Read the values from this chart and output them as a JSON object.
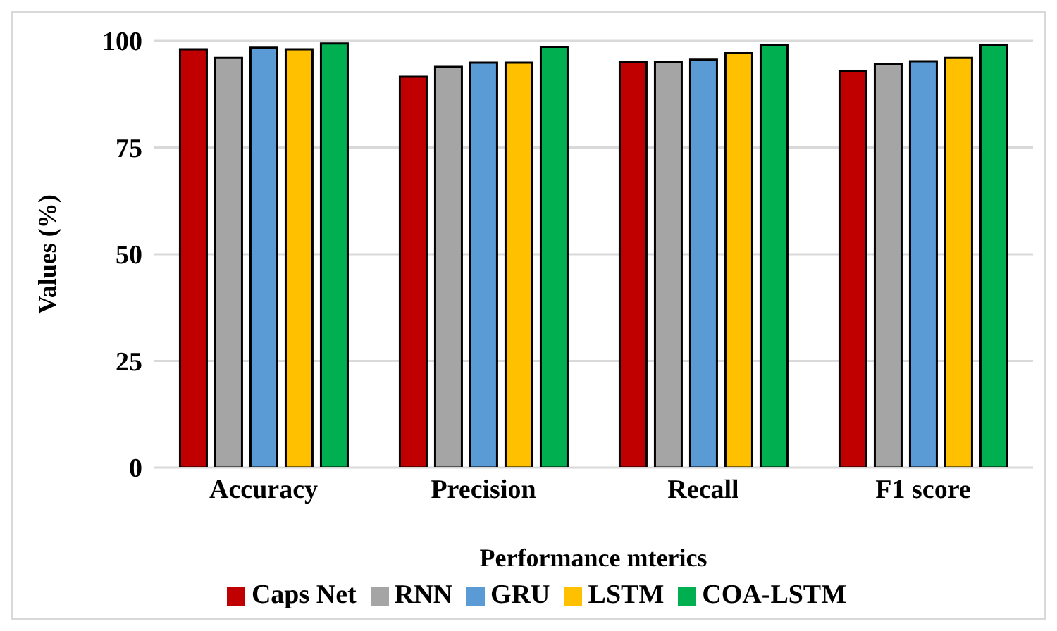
{
  "chart_data": {
    "type": "bar",
    "xlabel": "Performance mterics",
    "ylabel": "Values (%)",
    "categories": [
      "Accuracy",
      "Precision",
      "Recall",
      "F1 score"
    ],
    "series": [
      {
        "name": "Caps Net",
        "color": "#c00000",
        "values": [
          98,
          91.6,
          95,
          93
        ]
      },
      {
        "name": "RNN",
        "color": "#a5a5a5",
        "values": [
          96,
          93.9,
          95,
          94.6
        ]
      },
      {
        "name": "GRU",
        "color": "#5b9bd5",
        "values": [
          98.4,
          94.9,
          95.6,
          95.2
        ]
      },
      {
        "name": "LSTM",
        "color": "#ffc000",
        "values": [
          98,
          94.9,
          97.1,
          96
        ]
      },
      {
        "name": "COA-LSTM",
        "color": "#00b050",
        "values": [
          99.4,
          98.6,
          99,
          99
        ]
      }
    ],
    "ylim": [
      0,
      100
    ],
    "yticks": [
      0,
      25,
      50,
      75,
      100
    ],
    "grid": "y",
    "legend": "bottom"
  }
}
